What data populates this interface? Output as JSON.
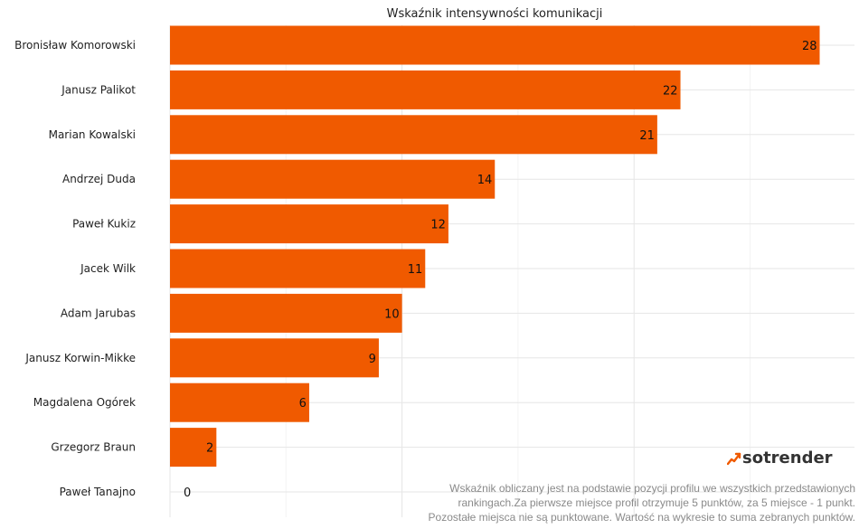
{
  "chart_data": {
    "type": "bar",
    "orientation": "horizontal",
    "title": "Wskaźnik intensywności komunikacji",
    "categories": [
      "Bronisław Komorowski",
      "Janusz Palikot",
      "Marian Kowalski",
      "Andrzej Duda",
      "Paweł Kukiz",
      "Jacek Wilk",
      "Adam Jarubas",
      "Janusz Korwin-Mikke",
      "Magdalena Ogórek",
      "Grzegorz Braun",
      "Paweł Tanajno"
    ],
    "values": [
      28,
      22,
      21,
      14,
      12,
      11,
      10,
      9,
      6,
      2,
      0
    ],
    "value_labels": [
      "28",
      "22",
      "21",
      "14",
      "12",
      "11",
      "10",
      "9",
      "6",
      "2",
      "0"
    ],
    "xlabel": "",
    "ylabel": "",
    "xlim": [
      0,
      29.5
    ],
    "grid": true,
    "bar_color": "#f05a00"
  },
  "logo": {
    "text": "sotrender",
    "icon": "sotrender-logo-icon"
  },
  "footnote": [
    "Wskaźnik obliczany jest na podstawie pozycji profilu we wszystkich przedstawionych",
    "rankingach.Za pierwsze miejsce profil otrzymuje 5 punktów, za 5 miejsce - 1 punkt.",
    "Pozostałe miejsca nie są punktowane. Wartość na wykresie to suma zebranych punktów."
  ]
}
